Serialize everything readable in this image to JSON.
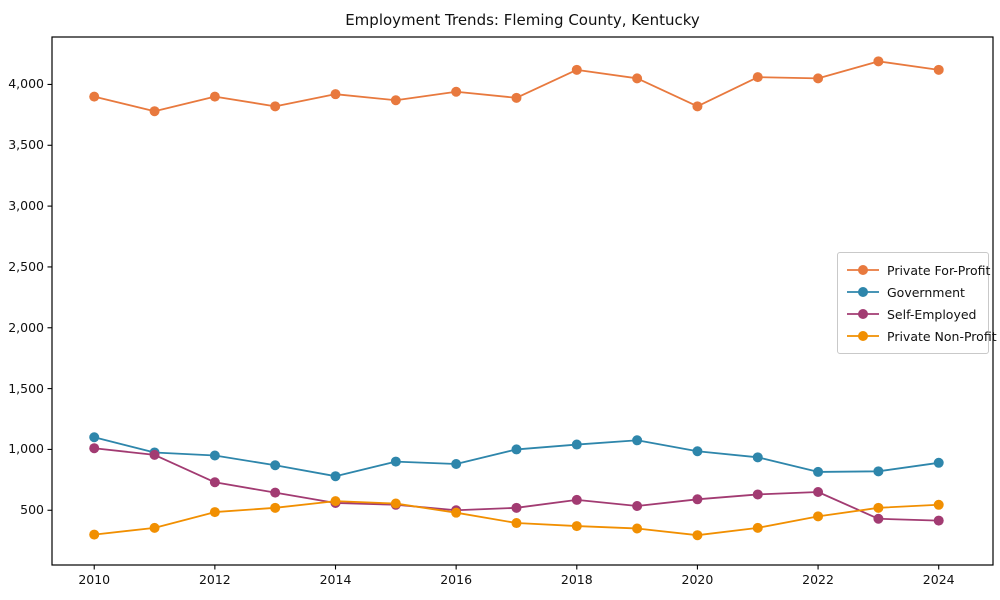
{
  "title": "Employment Trends: Fleming County, Kentucky",
  "chart_data": {
    "type": "line",
    "title": "Employment Trends: Fleming County, Kentucky",
    "xlabel": "",
    "ylabel": "",
    "x": [
      2010,
      2011,
      2012,
      2013,
      2014,
      2015,
      2016,
      2017,
      2018,
      2019,
      2020,
      2021,
      2022,
      2023,
      2024
    ],
    "series": [
      {
        "name": "Private For-Profit",
        "color": "#E8793E",
        "values": [
          3900,
          3780,
          3900,
          3820,
          3920,
          3870,
          3940,
          3890,
          4120,
          4050,
          3820,
          4060,
          4050,
          4190,
          4120
        ]
      },
      {
        "name": "Government",
        "color": "#2E86AB",
        "values": [
          1100,
          975,
          950,
          870,
          780,
          900,
          880,
          1000,
          1040,
          1075,
          985,
          935,
          815,
          820,
          890
        ]
      },
      {
        "name": "Self-Employed",
        "color": "#A23B72",
        "values": [
          1010,
          955,
          730,
          645,
          560,
          545,
          500,
          520,
          585,
          535,
          590,
          630,
          650,
          430,
          415
        ]
      },
      {
        "name": "Private Non-Profit",
        "color": "#F18F01",
        "values": [
          300,
          355,
          485,
          520,
          575,
          555,
          480,
          395,
          370,
          350,
          295,
          355,
          450,
          520,
          545
        ]
      }
    ],
    "xticks": [
      2010,
      2012,
      2014,
      2016,
      2018,
      2020,
      2022,
      2024
    ],
    "xtick_labels": [
      "2010",
      "2012",
      "2014",
      "2016",
      "2018",
      "2020",
      "2022",
      "2024"
    ],
    "yticks": [
      500,
      1000,
      1500,
      2000,
      2500,
      3000,
      3500,
      4000
    ],
    "ytick_labels": [
      "500",
      "1,000",
      "1,500",
      "2,000",
      "2,500",
      "3,000",
      "3,500",
      "4,000"
    ],
    "xlim": [
      2009.3,
      2024.9
    ],
    "ylim": [
      50,
      4390
    ],
    "grid": false,
    "legend_position": "right-middle",
    "axis_color": "#000000",
    "background": "#ffffff",
    "marker": "circle",
    "marker_radius": 5,
    "line_width": 1.8
  }
}
